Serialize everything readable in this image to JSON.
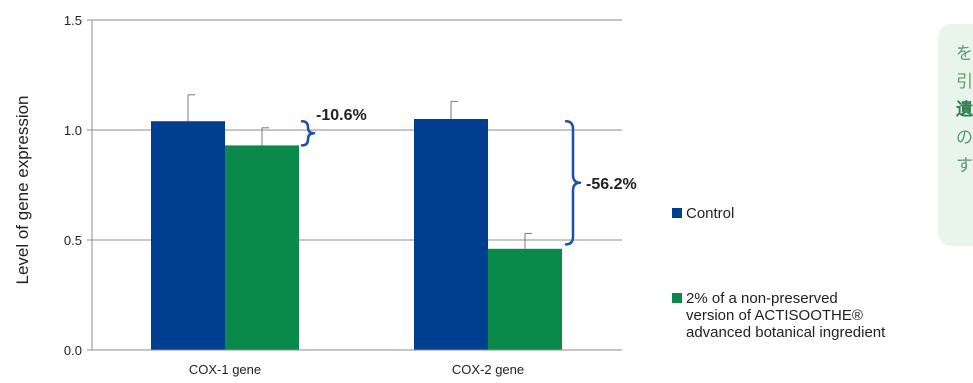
{
  "colors": {
    "control": "#003f8f",
    "treatment": "#0a8a4a",
    "bracket": "#1f4fa8",
    "grid": "#8c8c8c",
    "side_box_bg": "#e9f4ea"
  },
  "chart_data": {
    "type": "bar",
    "title": "",
    "xlabel": "",
    "ylabel": "Level of gene expression",
    "ylim": [
      0,
      1.5
    ],
    "yticks": [
      "0.0",
      "0.5",
      "1.0",
      "1.5"
    ],
    "categories": [
      "COX-1 gene",
      "COX-2 gene"
    ],
    "series": [
      {
        "name": "Control",
        "values": [
          1.04,
          1.05
        ],
        "errors": [
          0.12,
          0.08
        ]
      },
      {
        "name": "2% of a non-preserved version of ACTISOOTHE® advanced botanical ingredient",
        "values": [
          0.93,
          0.46
        ],
        "errors": [
          0.08,
          0.07
        ]
      }
    ],
    "legend_lines": [
      [
        "Control"
      ],
      [
        "2% of a non-preserved",
        "version of ACTISOOTHE®",
        "advanced botanical ingredient"
      ]
    ],
    "legend_position": "right",
    "grid": true,
    "annotations": [
      {
        "text": "-10.6%",
        "category": 0,
        "from": 0.93,
        "to": 1.04
      },
      {
        "text": "-56.2%",
        "category": 1,
        "from": 0.48,
        "to": 1.04
      }
    ]
  },
  "side_box": {
    "lines": [
      "を",
      "引",
      "遺",
      "の",
      "す"
    ],
    "bold_index": 2
  }
}
